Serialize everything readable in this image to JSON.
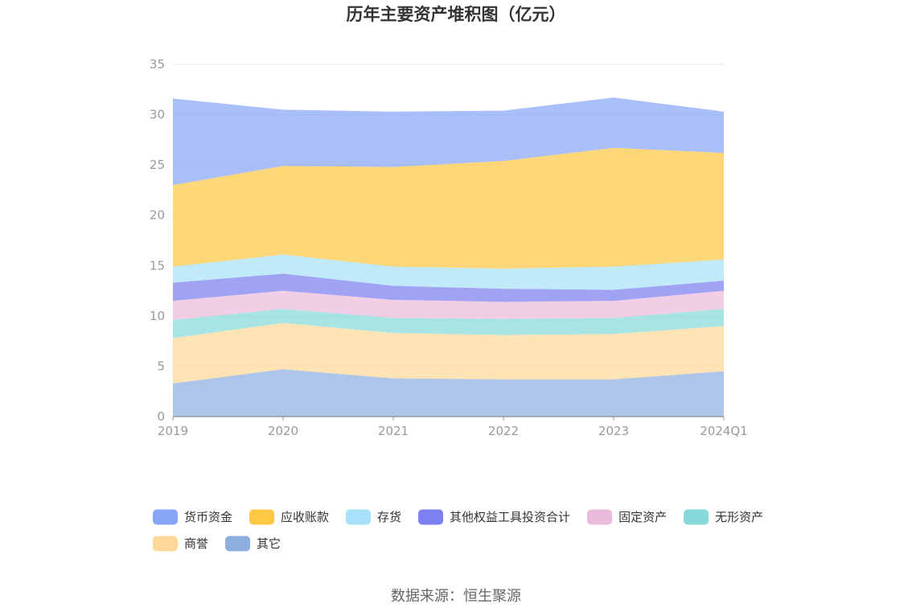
{
  "chart_data": {
    "type": "area",
    "stacked": true,
    "title": "历年主要资产堆积图（亿元）",
    "categories": [
      "2019",
      "2020",
      "2021",
      "2022",
      "2023",
      "2024Q1"
    ],
    "ylim": [
      0,
      35
    ],
    "yticks": [
      "0",
      "5",
      "10",
      "15",
      "20",
      "25",
      "30",
      "35"
    ],
    "series": [
      {
        "name": "其它",
        "color": "#8eaee0",
        "values": [
          3.3,
          4.7,
          3.8,
          3.7,
          3.7,
          4.5
        ]
      },
      {
        "name": "商誉",
        "color": "#fdd898",
        "values": [
          4.5,
          4.6,
          4.5,
          4.4,
          4.5,
          4.5
        ]
      },
      {
        "name": "无形资产",
        "color": "#86d9d9",
        "values": [
          1.8,
          1.4,
          1.5,
          1.6,
          1.6,
          1.7
        ]
      },
      {
        "name": "固定资产",
        "color": "#ebbbdb",
        "values": [
          1.9,
          1.8,
          1.8,
          1.7,
          1.7,
          1.8
        ]
      },
      {
        "name": "其他权益工具投资合计",
        "color": "#7b7ff0",
        "values": [
          1.8,
          1.7,
          1.4,
          1.3,
          1.1,
          1.0
        ]
      },
      {
        "name": "存货",
        "color": "#a7e0f8",
        "values": [
          1.6,
          1.9,
          1.9,
          2.0,
          2.3,
          2.1
        ]
      },
      {
        "name": "应收账款",
        "color": "#fec845",
        "values": [
          8.1,
          8.8,
          9.9,
          10.7,
          11.8,
          10.6
        ]
      },
      {
        "name": "货币资金",
        "color": "#88a6f7",
        "values": [
          8.6,
          5.6,
          5.5,
          5.0,
          5.0,
          4.1
        ]
      }
    ],
    "legend_order": [
      "货币资金",
      "应收账款",
      "存货",
      "其他权益工具投资合计",
      "固定资产",
      "无形资产",
      "商誉",
      "其它"
    ]
  },
  "source_text": "数据来源：恒生聚源"
}
